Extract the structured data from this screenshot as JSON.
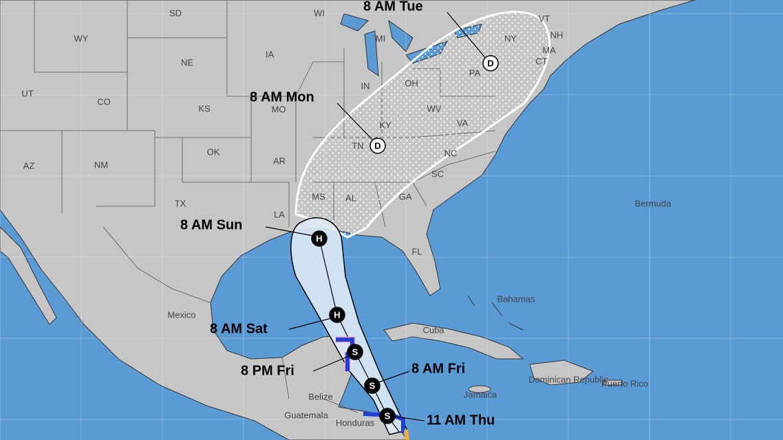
{
  "map": {
    "labels": [
      "WY",
      "SD",
      "WI",
      "MI",
      "NY",
      "VT",
      "NH",
      "MA",
      "CT",
      "NE",
      "IA",
      "UT",
      "CO",
      "KS",
      "MO",
      "IN",
      "OH",
      "PA",
      "WV",
      "KY",
      "VA",
      "TN",
      "NC",
      "OK",
      "AR",
      "AZ",
      "NM",
      "TX",
      "SC",
      "GA",
      "MS",
      "AL",
      "LA",
      "FL",
      "Mexico",
      "Bermuda",
      "Bahamas",
      "Cuba",
      "Jamaica",
      "Belize",
      "Guatemala",
      "Honduras",
      "Dominican Republic",
      "Puerto Rico"
    ]
  },
  "forecast_points": [
    {
      "time": "8 AM Tue",
      "symbol": "D"
    },
    {
      "time": "8 AM Mon",
      "symbol": "D"
    },
    {
      "time": "8 AM Sun",
      "symbol": "H"
    },
    {
      "time": "8 AM Sat",
      "symbol": "H"
    },
    {
      "time": "8 PM Fri",
      "symbol": "S"
    },
    {
      "time": "8 AM Fri",
      "symbol": "S"
    },
    {
      "time": "11 AM Thu",
      "symbol": "S"
    }
  ]
}
